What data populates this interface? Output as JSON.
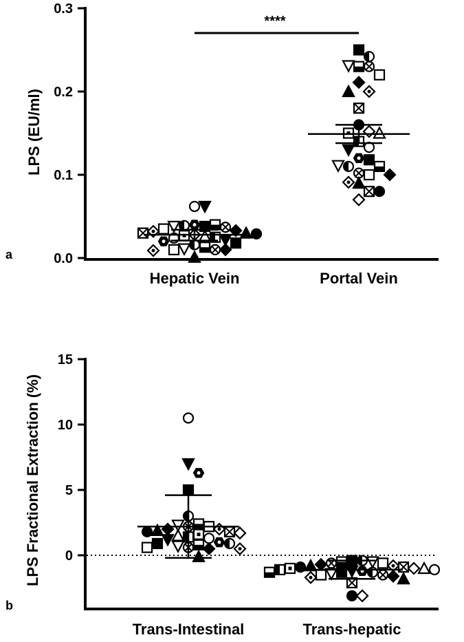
{
  "chart_data": [
    {
      "panel_label": "a",
      "type": "scatter",
      "ylabel": "LPS (EU/ml)",
      "xlabel": "",
      "ylim": [
        0,
        0.3
      ],
      "yticks": [
        "0.0",
        "0.1",
        "0.2",
        "0.3"
      ],
      "categories": [
        "Hepatic Vein",
        "Portal Vein"
      ],
      "significance": "****",
      "groups": [
        {
          "category": "Hepatic Vein",
          "mean": 0.028,
          "sd_low": 0.021,
          "sd_high": 0.034,
          "values": [
            0.062,
            0.062,
            0.04,
            0.038,
            0.039,
            0.04,
            0.038,
            0.037,
            0.035,
            0.033,
            0.032,
            0.03,
            0.03,
            0.029,
            0.028,
            0.027,
            0.026,
            0.025,
            0.024,
            0.022,
            0.02,
            0.018,
            0.016,
            0.013,
            0.011,
            0.01,
            0.01,
            0.01,
            0.009,
            0.001
          ]
        },
        {
          "category": "Portal Vein",
          "mean": 0.149,
          "sd_low": 0.138,
          "sd_high": 0.16,
          "values": [
            0.25,
            0.242,
            0.23,
            0.231,
            0.23,
            0.22,
            0.211,
            0.2,
            0.2,
            0.18,
            0.16,
            0.152,
            0.15,
            0.15,
            0.14,
            0.133,
            0.13,
            0.12,
            0.118,
            0.11,
            0.11,
            0.111,
            0.102,
            0.1,
            0.1,
            0.091,
            0.09,
            0.08,
            0.08,
            0.07
          ]
        }
      ]
    },
    {
      "panel_label": "b",
      "type": "scatter",
      "ylabel": "LPS Fractional Extraction (%)",
      "xlabel": "",
      "ylim": [
        -4,
        15
      ],
      "yticks": [
        "0",
        "5",
        "10",
        "15"
      ],
      "categories": [
        "Trans-Intestinal",
        "Trans-hepatic"
      ],
      "reference_line": 0,
      "groups": [
        {
          "category": "Trans-Intestinal",
          "mean": 2.2,
          "sd_low": -0.2,
          "sd_high": 4.6,
          "values": [
            10.5,
            7.0,
            6.3,
            5.0,
            3.0,
            2.4,
            2.3,
            2.2,
            2.2,
            2.0,
            2.0,
            1.9,
            1.8,
            1.8,
            1.7,
            1.6,
            1.5,
            1.4,
            1.3,
            1.2,
            1.0,
            0.9,
            0.9,
            0.8,
            0.7,
            0.6,
            0.6,
            0.5,
            0.5,
            -0.1
          ]
        },
        {
          "category": "Trans-hepatic",
          "mean": -1.1,
          "sd_low": -1.8,
          "sd_high": -0.4,
          "values": [
            -0.4,
            -0.4,
            -0.5,
            -0.5,
            -0.6,
            -0.6,
            -0.7,
            -0.8,
            -0.8,
            -0.9,
            -0.9,
            -1.0,
            -1.0,
            -1.0,
            -1.1,
            -1.1,
            -1.2,
            -1.2,
            -1.3,
            -1.3,
            -1.3,
            -1.4,
            -1.5,
            -1.5,
            -1.6,
            -1.7,
            -1.8,
            -2.1,
            -3.1,
            -3.1
          ]
        }
      ]
    }
  ]
}
